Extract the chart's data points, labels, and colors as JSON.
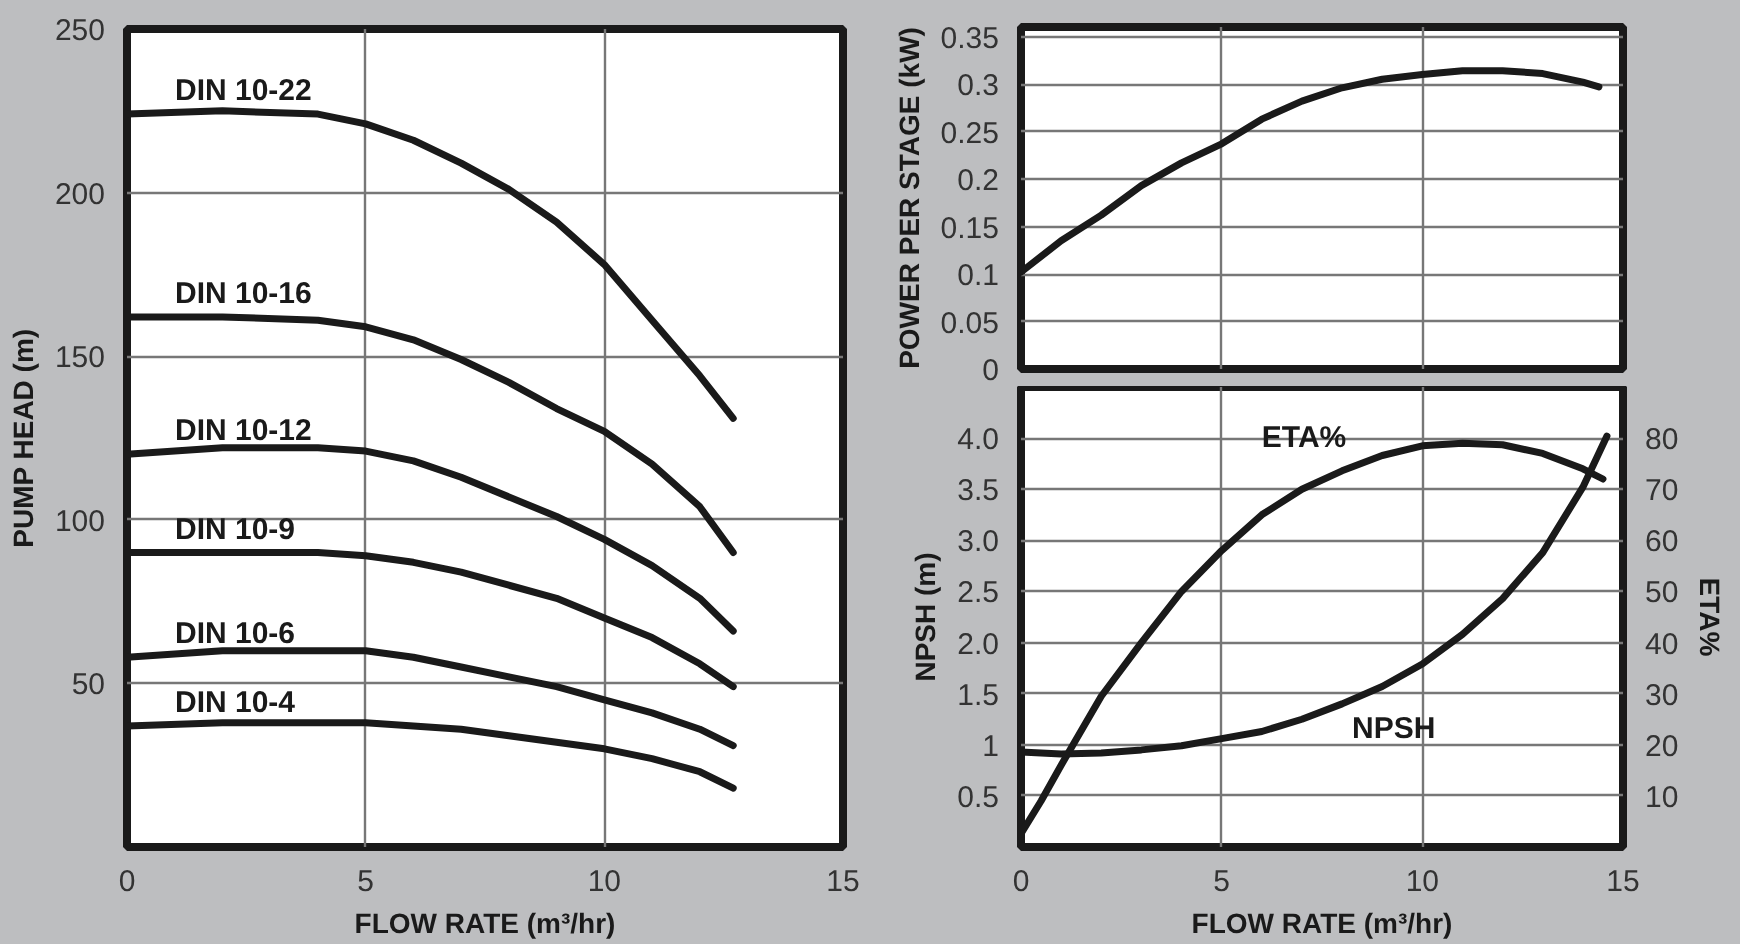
{
  "chart_data": [
    {
      "type": "line",
      "xlabel": "FLOW RATE (m³/hr)",
      "ylabel": "PUMP HEAD (m)",
      "xlim": [
        0,
        15
      ],
      "ylim": [
        0,
        250
      ],
      "xticks": [
        0,
        5,
        10,
        15
      ],
      "yticks": [
        50,
        100,
        150,
        200,
        250
      ],
      "grid": true,
      "x": [
        0,
        2,
        4,
        5,
        6,
        7,
        8,
        9,
        10,
        11,
        12,
        12.7
      ],
      "series": [
        {
          "name": "DIN 10-22",
          "color": "#1a1a1a",
          "values": [
            224,
            225,
            224,
            221,
            216,
            209,
            201,
            191,
            178,
            161,
            144,
            131
          ]
        },
        {
          "name": "DIN 10-16",
          "color": "#1a1a1a",
          "values": [
            162,
            162,
            161,
            159,
            155,
            149,
            142,
            134,
            127,
            117,
            104,
            90
          ]
        },
        {
          "name": "DIN 10-12",
          "color": "#1a1a1a",
          "values": [
            120,
            122,
            122,
            121,
            118,
            113,
            107,
            101,
            94,
            86,
            76,
            66
          ]
        },
        {
          "name": "DIN 10-9",
          "color": "#1a1a1a",
          "values": [
            90,
            90,
            90,
            89,
            87,
            84,
            80,
            76,
            70,
            64,
            56,
            49
          ]
        },
        {
          "name": "DIN 10-6",
          "color": "#1a1a1a",
          "values": [
            58,
            60,
            60,
            60,
            58,
            55,
            52,
            49,
            45,
            41,
            36,
            31
          ]
        },
        {
          "name": "DIN 10-4",
          "color": "#1a1a1a",
          "values": [
            37,
            38,
            38,
            38,
            37,
            36,
            34,
            32,
            30,
            27,
            23,
            18
          ]
        }
      ]
    },
    {
      "type": "line",
      "ylabel": "POWER PER STAGE (kW)",
      "xlim": [
        0,
        15
      ],
      "ylim": [
        0,
        0.36
      ],
      "xticks": [
        0,
        5,
        10,
        15
      ],
      "yticks": [
        0,
        0.05,
        0.1,
        0.15,
        0.2,
        0.25,
        0.3,
        0.35
      ],
      "grid": true,
      "tick_labels": "y",
      "x": [
        0,
        1,
        2,
        3,
        4,
        5,
        6,
        7,
        8,
        9,
        10,
        11,
        12,
        13,
        14,
        14.4
      ],
      "series": [
        {
          "color": "#1a1a1a",
          "values": [
            0.102,
            0.135,
            0.162,
            0.193,
            0.217,
            0.237,
            0.263,
            0.282,
            0.296,
            0.305,
            0.31,
            0.314,
            0.314,
            0.311,
            0.302,
            0.297
          ]
        }
      ]
    },
    {
      "type": "line",
      "xlabel": "FLOW RATE (m³/hr)",
      "ylabel": "NPSH (m)",
      "y2label": "ETA%",
      "xlim": [
        0,
        15
      ],
      "ylim": [
        0,
        4.5
      ],
      "y2lim": [
        0,
        90
      ],
      "xticks": [
        0,
        5,
        10,
        15
      ],
      "yticks": [
        0.5,
        1,
        1.5,
        {
          "value": 2,
          "label": "2.0"
        },
        2.5,
        {
          "value": 3,
          "label": "3.0"
        },
        3.5,
        {
          "value": 4,
          "label": "4.0"
        }
      ],
      "y2ticks": [
        10,
        20,
        30,
        40,
        50,
        60,
        70,
        80
      ],
      "grid": true,
      "series": [
        {
          "name": "ETA%",
          "color": "#1a1a1a",
          "axis": "y2",
          "x": [
            0,
            0.5,
            1,
            2,
            3,
            4,
            5,
            6,
            7,
            8,
            9,
            10,
            11,
            12,
            13,
            14,
            14.5
          ],
          "values": [
            2.6,
            9,
            16,
            29.5,
            40,
            50,
            58,
            65,
            70,
            73.6,
            76.6,
            78.5,
            79,
            78.7,
            77,
            74,
            72
          ]
        },
        {
          "name": "NPSH",
          "color": "#1a1a1a",
          "x": [
            0,
            1,
            2,
            3,
            4,
            5,
            6,
            7,
            8,
            9,
            10,
            11,
            12,
            13,
            14,
            14.6
          ],
          "values": [
            0.93,
            0.91,
            0.92,
            0.95,
            0.99,
            1.06,
            1.13,
            1.25,
            1.4,
            1.57,
            1.79,
            2.08,
            2.43,
            2.88,
            3.52,
            4.02
          ]
        }
      ]
    }
  ]
}
